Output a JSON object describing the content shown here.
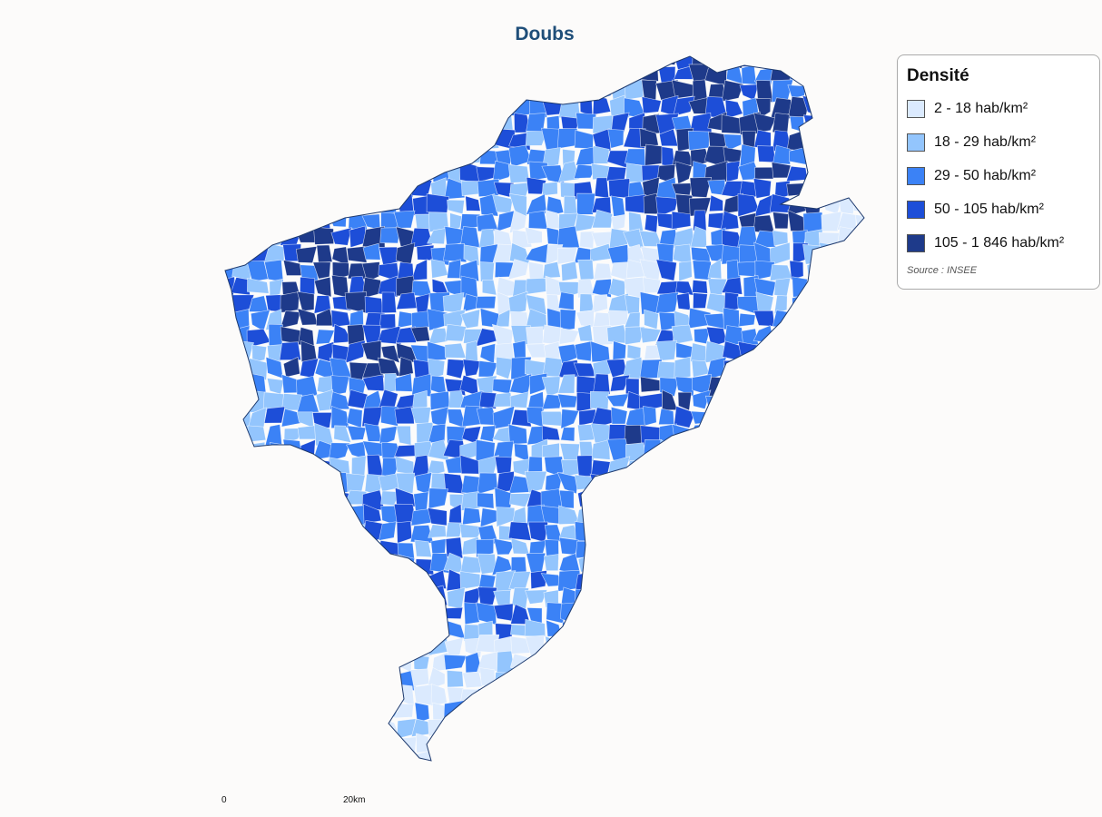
{
  "title": "Doubs",
  "legend": {
    "title": "Densité",
    "items": [
      {
        "label": "2 - 18 hab/km²",
        "color": "#dbeafe"
      },
      {
        "label": "18 - 29 hab/km²",
        "color": "#93c5fd"
      },
      {
        "label": "29 - 50 hab/km²",
        "color": "#3b82f6"
      },
      {
        "label": "50 - 105 hab/km²",
        "color": "#1d4ed8"
      },
      {
        "label": "105 - 1 846 hab/km²",
        "color": "#1e3a8a"
      }
    ],
    "source": "Source : INSEE"
  },
  "scale": {
    "start": "0",
    "end": "20km"
  }
}
